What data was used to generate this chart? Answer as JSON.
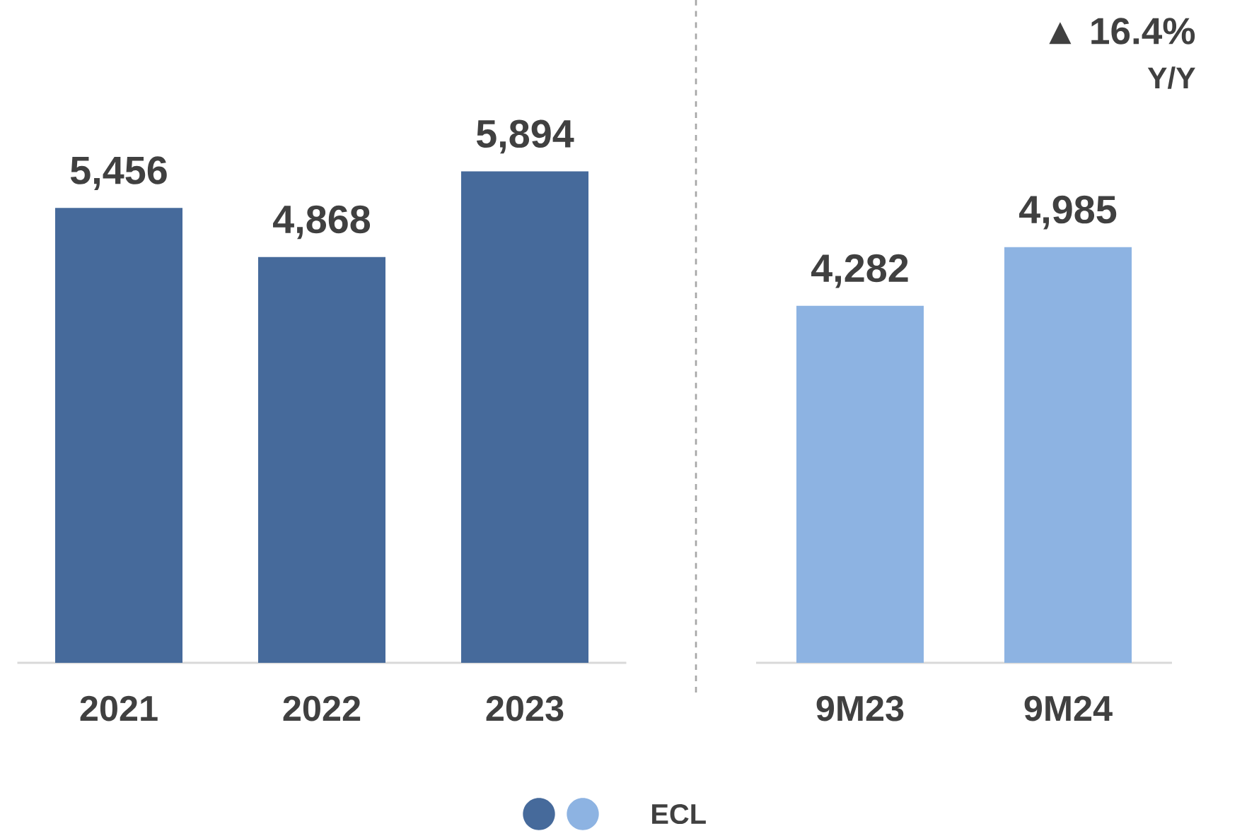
{
  "chart_data": [
    {
      "type": "bar",
      "categories": [
        "2021",
        "2022",
        "2023"
      ],
      "series": [
        {
          "name": "ECL",
          "color": "#466a9b",
          "values": [
            5456,
            4868,
            5894
          ],
          "value_labels": [
            "5,456",
            "4,868",
            "5,894"
          ]
        }
      ],
      "legend": "bottom"
    },
    {
      "type": "bar",
      "categories": [
        "9M23",
        "9M24"
      ],
      "series": [
        {
          "color": "#8db3e2",
          "values": [
            4282,
            4985
          ],
          "value_labels": [
            "4,282",
            "4,985"
          ]
        }
      ],
      "annotations": [
        "▲ 16.4%",
        "Y/Y"
      ]
    }
  ]
}
